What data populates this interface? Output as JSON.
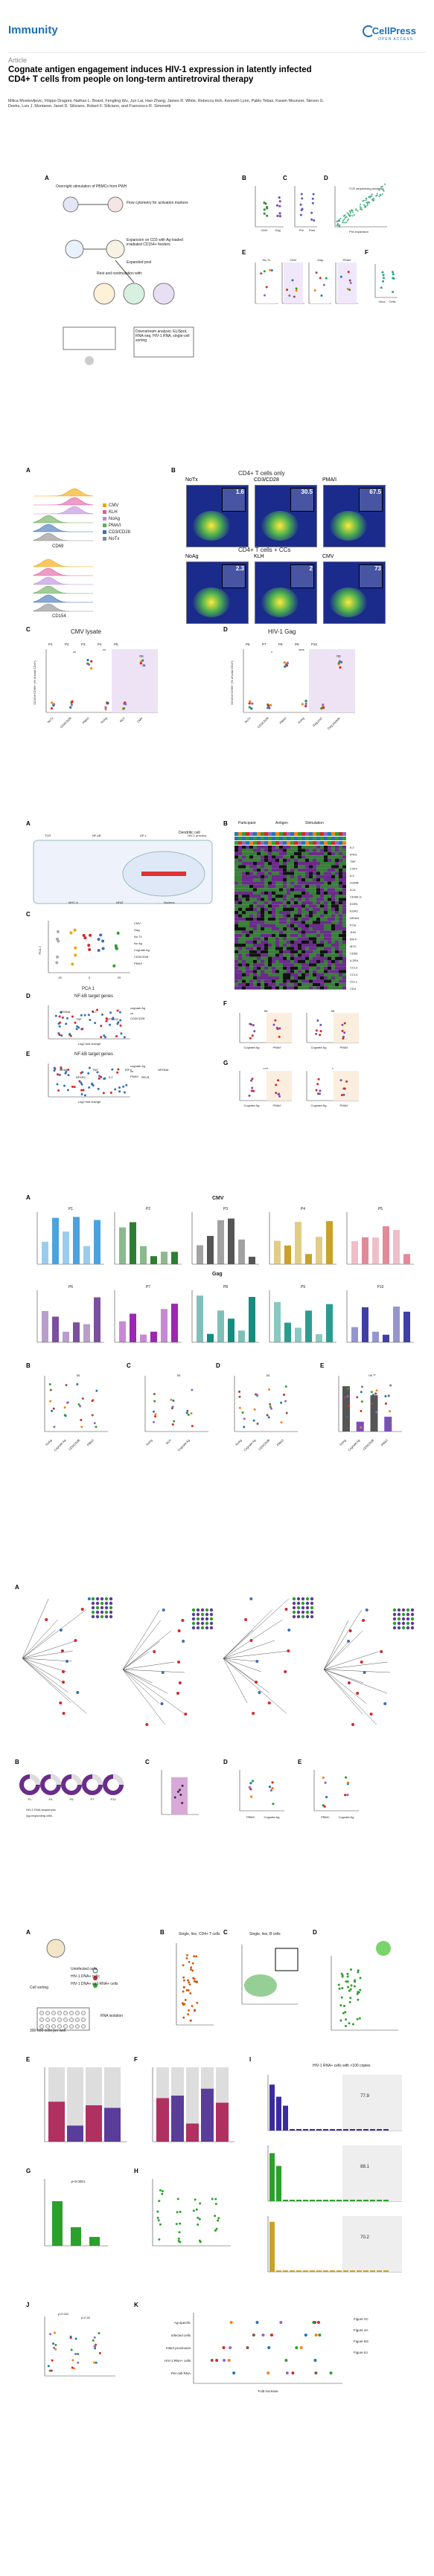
{
  "header": {
    "journal": "Immunity",
    "brand": "CellPress",
    "brand_sub": "OPEN ACCESS",
    "article_type": "Article",
    "title": "Cognate antigen engagement induces HIV-1 expression in latently infected CD4+ T cells from people on long-term antiretroviral therapy",
    "authors": "Milica Moskovljevic, Filippo Dragoni, Nathan L. Board, Fengting Wu, Jun Lai, Hao Zhang, James R. White, Rebecca Hoh, Kenneth Lynn, Pablo Tebas, Karam Mounzer, Steven G. Deeks, Luis J. Montaner, Janet D. Siliciano, Robert F. Siliciano, and Francesco R. Simonetti"
  },
  "fig1": {
    "panel_a": {
      "label": "A",
      "step1": "Overnight stimulation of PBMCs from PWH",
      "step2": "Flow cytometry for activation markers",
      "step3": "Expansion on CD3 with Ag-loaded irradiated CD154+ feeders",
      "step4": "Expanded pool",
      "step5": "Rest and restimulation with:",
      "step6": "Downstream analysis: ELISpot, RNA-seq, HIV-1 RNA, single-cell sorting",
      "legend": [
        "CMV",
        "HIV",
        "Gag",
        "Ags"
      ]
    },
    "panel_b": {
      "label": "B",
      "ylabel": "CD154+CD69+ (% of CD4+)",
      "cats": [
        "CMV",
        "Gag"
      ]
    },
    "panel_c": {
      "label": "C",
      "ylabel": "Ag-specific cells (%)",
      "cats": [
        "Pre",
        "Post"
      ]
    },
    "panel_d": {
      "label": "D",
      "caption": "TCR sequencing similarity",
      "xlabel": "Pre-expansion",
      "ylabel": "Post-expansion"
    },
    "panel_e": {
      "label": "E",
      "groups": [
        "No Tx",
        "CMV",
        "Gag",
        "PMA/I"
      ],
      "ylabel": "HIV-1 RNA copies"
    },
    "panel_f": {
      "label": "F",
      "cats": [
        "Virus",
        "Cells"
      ]
    }
  },
  "fig2": {
    "panel_a": {
      "label": "A",
      "xlabel": "CD69",
      "xlabel2": "CD154",
      "ylabel": "Counts",
      "legend": [
        "CMV",
        "KLH",
        "NoAg",
        "PMA/I",
        "CD3/CD28",
        "NoTx"
      ],
      "legend_colors": [
        "#f0a500",
        "#e05aa0",
        "#b98ad9",
        "#66aa55",
        "#3b6fb6",
        "#888888"
      ]
    },
    "panel_b": {
      "label": "B",
      "title_top": "CD4+ T cells only",
      "title_mid": "CD4+ T cells + CCs",
      "plots": [
        {
          "name": "NoTx",
          "value": "1.6"
        },
        {
          "name": "CD3/CD28",
          "value": "30.5"
        },
        {
          "name": "PMA/I",
          "value": "67.5"
        },
        {
          "name": "NoAg",
          "value": "2.3"
        },
        {
          "name": "KLH",
          "value": "2"
        },
        {
          "name": "CMV",
          "value": "73"
        }
      ],
      "xlabel": "CD69",
      "ylabel": "CD154"
    },
    "panel_c": {
      "label": "C",
      "title": "CMV lysate",
      "participants": [
        "P1",
        "P2",
        "P3",
        "P4",
        "P5"
      ],
      "ylabel": "CD154+CD69+ (% of total CD4+)",
      "cats": [
        "NoTx",
        "CD3/CD28",
        "PMA/I",
        "NoAg",
        "KLH",
        "CMV"
      ],
      "sig1": "**",
      "sig2": "**",
      "sig3": "ns"
    },
    "panel_d": {
      "label": "D",
      "title": "HIV-1 Gag",
      "participants": [
        "P6",
        "P7",
        "P8",
        "P9",
        "P10"
      ],
      "ylabel": "CD154+CD69+ (% of total CD4+)",
      "cats": [
        "NoTx",
        "CD3/CD28",
        "PMA/I",
        "NoAg",
        "Gag pool",
        "Gag peptide"
      ],
      "sig1": "*",
      "sig2": "****",
      "sig3": "ns"
    }
  },
  "fig3": {
    "panel_a": {
      "label": "A",
      "caption": "Dendritic cell",
      "sublabels": [
        "TCR",
        "MHC-II",
        "NF-kB",
        "NFAT",
        "AP-1",
        "Nucleus",
        "HIV-1 provirus"
      ]
    },
    "panel_b": {
      "label": "B",
      "legend_title1": "Participant",
      "legend_title2": "Antigen",
      "legend_title3": "Stimulation",
      "antigen": [
        "CMV",
        "Gag"
      ],
      "stimulation": [
        "No Tx",
        "No Ag",
        "Cognate Ag",
        "CD3/CD28",
        "PMA/I"
      ],
      "genes": [
        "IL2",
        "IFNG",
        "TNF",
        "CSF2",
        "IL3",
        "GZMB",
        "IL21",
        "CD40LG",
        "EGR1",
        "EGR2",
        "NR4A1",
        "FOS",
        "JUN",
        "IRF4",
        "MYC",
        "CD69",
        "IL2RA",
        "CCL3",
        "CCL4",
        "XCL1",
        "CD4"
      ]
    },
    "panel_c": {
      "label": "C",
      "xlabel": "PCA 1",
      "ylabel": "PCA 2",
      "legend": [
        "CMV",
        "Gag",
        "No Tx",
        "No Ag",
        "Cognate Ag",
        "CD3/CD28",
        "PMA/I"
      ],
      "xticks": [
        "-20",
        "0",
        "20"
      ]
    },
    "panel_d": {
      "label": "D",
      "title": "NF-kB target genes",
      "legend": [
        "cognate Ag",
        "vs",
        "CD3/CD28"
      ],
      "xlabel": "Log2 fold change",
      "ylabel": "-Log10 adjusted p value",
      "genes": [
        "NFKBIA",
        "TNF",
        "IL2",
        "PTGS2"
      ]
    },
    "panel_e": {
      "label": "E",
      "title": "NF-kB target genes",
      "legend": [
        "cognate Ag",
        "vs",
        "PMA/I"
      ],
      "xlabel": "Log2 fold change",
      "ylabel": "-Log10 adjusted p value",
      "genes": [
        "CD69",
        "NFKB2",
        "TNF",
        "IL2",
        "IRF4",
        "RELB",
        "NFKBIA"
      ]
    },
    "panel_f": {
      "label": "F",
      "legend": [
        "Cognate Ag",
        "PMA/I",
        "CMV",
        "Gag"
      ],
      "ylabel1": "IL-2 (pg/mL)",
      "ylabel2": "IFN-g (pg/mL)",
      "cats": [
        "Cognate Ag",
        "PMA/I"
      ],
      "sig": [
        "ns",
        "ns"
      ]
    },
    "panel_g": {
      "label": "G",
      "ylabel1": "TNF-a (pg/mL)",
      "ylabel2": "GM-CSF (pg/mL)",
      "cats": [
        "Cognate Ag",
        "PMA/I"
      ],
      "sig": [
        "****",
        "*"
      ]
    }
  },
  "fig4": {
    "panel_a": {
      "label": "A",
      "group_cmv": "CMV",
      "group_gag": "Gag",
      "ylabel": "cell-associated HIV-1 RNA copies/10^6 RPP",
      "participants_top": [
        "P1",
        "P2",
        "P3",
        "P4",
        "P5"
      ],
      "participants_bottom": [
        "P6",
        "P7",
        "P8",
        "P9",
        "P10"
      ],
      "colors_top": [
        "#4aa3df",
        "#2e7d32",
        "#555555",
        "#c9a227",
        "#e08a9a"
      ],
      "colors_bottom": [
        "#7b4fa0",
        "#9c27b0",
        "#148c80",
        "#2a9d8f",
        "#3f3fa8"
      ]
    },
    "panel_b": {
      "label": "B",
      "ylabel": "Fold change vs NoTx",
      "cats": [
        "NoAg",
        "Cognate Ag",
        "CD3/CD28",
        "PMA/I"
      ],
      "sig": "ns"
    },
    "panel_c": {
      "label": "C",
      "ylabel": "Fold change vs NoAg",
      "cats": [
        "NoAg",
        "KLH",
        "Cognate Ag"
      ],
      "sig": "ns"
    },
    "panel_d": {
      "label": "D",
      "ylabel": "HIV-1 RNA/HIV-1 DNA",
      "cats": [
        "NoAg",
        "Cognate Ag",
        "CD3/CD28",
        "PMA/I"
      ],
      "sig": "ns"
    },
    "panel_e": {
      "label": "E",
      "ylabel": "polyA HIV-1 RNA copies/mL",
      "cats": [
        "NoAg",
        "Cognate Ag",
        "CD3/CD28",
        "PMA/I"
      ],
      "sig": [
        "ns",
        "**"
      ]
    }
  },
  "fig5": {
    "panel_a": {
      "label": "A",
      "legend": [
        "Intact",
        "Defective",
        "Clonal"
      ]
    },
    "panel_b": {
      "label": "B",
      "legend": [
        "HIV-1 DNA sequences",
        "Ag-responding cells"
      ],
      "sublabels": [
        "P1",
        "P4",
        "P6",
        "P7",
        "P10"
      ]
    },
    "panel_c": {
      "label": "C",
      "ylabel": "% clonal proviruses"
    },
    "panel_d": {
      "label": "D",
      "ylabel": "Fraction intact",
      "cats": [
        "PBMC",
        "Cognate Ag"
      ]
    },
    "panel_e": {
      "label": "E",
      "ylabel": "Fraction clonal",
      "cats": [
        "PBMC",
        "Cognate Ag"
      ]
    }
  },
  "fig6": {
    "panel_a": {
      "label": "A",
      "items": [
        "Uninfected cells",
        "HIV-1 DNA+ cells",
        "HIV-1 DNA+ and RNA+ cells"
      ],
      "caption": "Cell sorting",
      "caption2": "300-500 cells per well",
      "caption3": "RNA isolation",
      "caption4": "cDNA synthesis and gPCR for HIV-1 polyA and internal control"
    },
    "panel_b": {
      "label": "B",
      "title": "Single, live, CD4+ T cells",
      "ylabel": "HIV-1 RNA copies",
      "xlabel": "n=40 each group"
    },
    "panel_c": {
      "label": "C",
      "title": "Single, live, B cells",
      "xlabel": "HIV-1 Gag",
      "ylabel": "HIV-1 Env"
    },
    "panel_d": {
      "label": "D",
      "ylabel": "HIV-1 RNA copies/cell"
    },
    "panel_e": {
      "label": "E",
      "ylabel": "Percentage of wells",
      "xlabel": "Total cells"
    },
    "panel_f": {
      "label": "F",
      "legend": [
        "HIV-1 RNA+",
        "HIV-1 RNA-"
      ],
      "ylabel": "Percentage of wells"
    },
    "panel_g": {
      "label": "G",
      "ylabel": "HIV-1 RNA copies/well",
      "value": "p<0.0001"
    },
    "panel_h": {
      "label": "H",
      "ylabel": "HIV-1 RNA copies/cell"
    },
    "panel_i": {
      "label": "I",
      "title": "HIV-1 RNA+ cells with >100 copies",
      "values": [
        "77.9",
        "88.1",
        "70.2"
      ],
      "xlabel": "HIV-1 RNA copies/cell",
      "ylabel": "Count"
    },
    "panel_j": {
      "label": "J",
      "ylabel": "Percentage of cells",
      "sig": [
        "p=0.022",
        "p=0.02"
      ]
    },
    "panel_k": {
      "label": "K",
      "xlabel": "Fold increase",
      "rows": [
        "Ag-specific",
        "Infected cells",
        "Intact proviruses",
        "HIV-1 RNA+ cells",
        "Per-cell RNA"
      ],
      "legends": [
        "Figure 2C",
        "Figure 4A",
        "Figure 6G",
        "Figure 6J"
      ]
    }
  }
}
